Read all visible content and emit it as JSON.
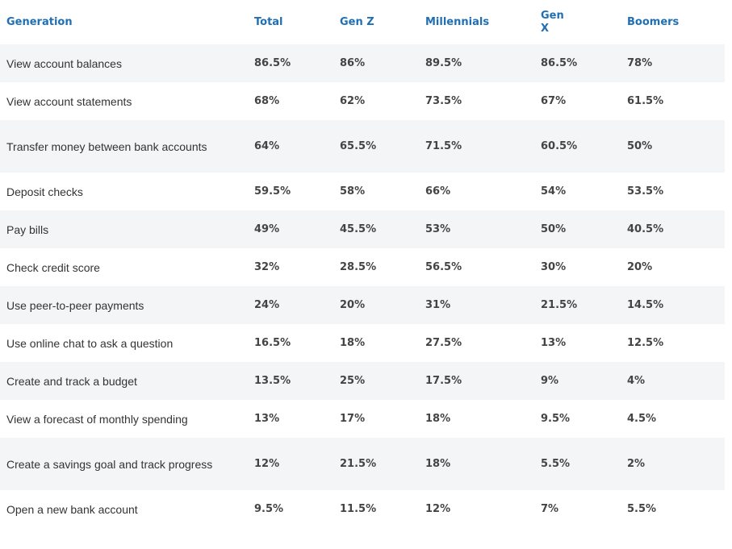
{
  "table": {
    "headers": [
      "Generation",
      "Total",
      "Gen Z",
      "Millennials",
      "Gen X",
      "Boomers"
    ],
    "rows": [
      {
        "label": "View account balances",
        "values": [
          "86.5%",
          "86%",
          "89.5%",
          "86.5%",
          "78%"
        ]
      },
      {
        "label": "View account statements",
        "values": [
          "68%",
          "62%",
          "73.5%",
          "67%",
          "61.5%"
        ]
      },
      {
        "label": "Transfer money between bank accounts",
        "values": [
          "64%",
          "65.5%",
          "71.5%",
          "60.5%",
          "50%"
        ]
      },
      {
        "label": "Deposit checks",
        "values": [
          "59.5%",
          "58%",
          "66%",
          "54%",
          "53.5%"
        ]
      },
      {
        "label": "Pay bills",
        "values": [
          "49%",
          "45.5%",
          "53%",
          "50%",
          "40.5%"
        ]
      },
      {
        "label": "Check credit score",
        "values": [
          "32%",
          "28.5%",
          "56.5%",
          "30%",
          "20%"
        ]
      },
      {
        "label": "Use peer-to-peer payments",
        "values": [
          "24%",
          "20%",
          "31%",
          "21.5%",
          "14.5%"
        ]
      },
      {
        "label": "Use online chat to ask a question",
        "values": [
          "16.5%",
          "18%",
          "27.5%",
          "13%",
          "12.5%"
        ]
      },
      {
        "label": "Create and track a budget",
        "values": [
          "13.5%",
          "25%",
          "17.5%",
          "9%",
          "4%"
        ]
      },
      {
        "label": "View a forecast of monthly spending",
        "values": [
          "13%",
          "17%",
          "18%",
          "9.5%",
          "4.5%"
        ]
      },
      {
        "label": "Create a savings goal and track progress",
        "values": [
          "12%",
          "21.5%",
          "18%",
          "5.5%",
          "2%"
        ]
      },
      {
        "label": "Open a new bank account",
        "values": [
          "9.5%",
          "11.5%",
          "12%",
          "7%",
          "5.5%"
        ]
      }
    ]
  },
  "colors": {
    "header_text": "#1f6fb5",
    "row_shade": "#f4f5f7",
    "body_text": "#333333"
  }
}
